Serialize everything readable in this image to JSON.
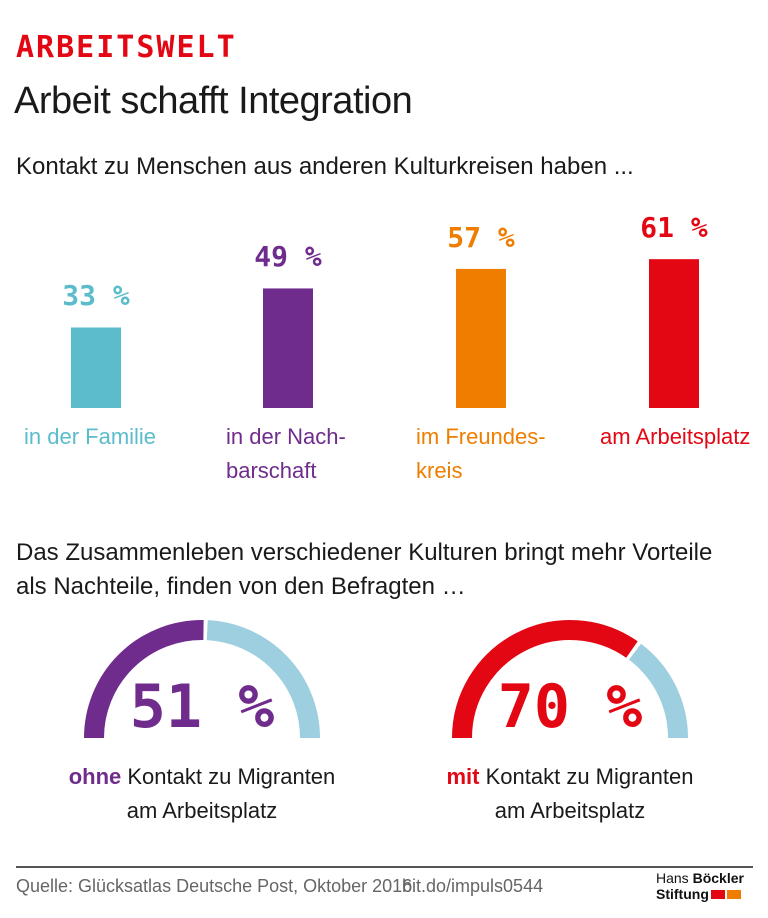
{
  "header": {
    "kicker": "ARBEITSWELT",
    "title": "Arbeit schafft Integration"
  },
  "chart_data": [
    {
      "type": "bar",
      "title": "Kontakt zu Menschen aus anderen Kulturkreisen haben ...",
      "categories": [
        "in der Familie",
        "in der Nachbarschaft",
        "im Freundeskreis",
        "am Arbeitsplatz"
      ],
      "category_lines": [
        [
          "in der Familie"
        ],
        [
          "in der Nach-",
          "barschaft"
        ],
        [
          "im Freundes-",
          "kreis"
        ],
        [
          "am Arbeitsplatz"
        ]
      ],
      "values": [
        33,
        49,
        57,
        61
      ],
      "value_labels": [
        "33 %",
        "49 %",
        "57 %",
        "61 %"
      ],
      "colors": [
        "#5bbccc",
        "#6f2c8c",
        "#ef7d00",
        "#e30613"
      ],
      "unit": "%",
      "ylim": [
        0,
        100
      ],
      "grid": false
    },
    {
      "type": "gauge",
      "title": "Das Zusammenleben verschiedener Kulturen bringt mehr Vorteile als Nachteile, finden von den Befragten …",
      "items": [
        {
          "value": 51,
          "label": "51 %",
          "bold": "ohne",
          "rest": " Kontakt zu Migranten",
          "line2": "am Arbeitsplatz",
          "color": "#6f2c8c",
          "remainder_color": "#9ecfe0"
        },
        {
          "value": 70,
          "label": "70 %",
          "bold": "mit",
          "rest": " Kontakt zu Migranten",
          "line2": "am Arbeitsplatz",
          "color": "#e30613",
          "remainder_color": "#9ecfe0"
        }
      ]
    }
  ],
  "footer": {
    "source": "Quelle: Glücksatlas Deutsche Post, Oktober 2016",
    "link": "bit.do/impuls0544",
    "logo_line1_a": "Hans ",
    "logo_line1_b": "Böckler",
    "logo_line2": "Stiftung",
    "logo_colors": [
      "#e30613",
      "#ef7d00"
    ]
  }
}
